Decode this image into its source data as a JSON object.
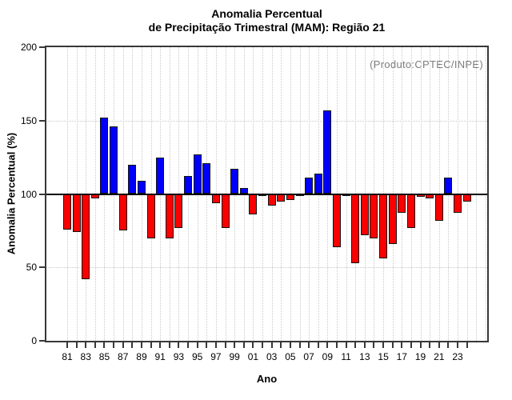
{
  "chart_data": {
    "type": "bar",
    "title": "Anomalia Percentual de Precipitação Trimestral (MAM): Região 21",
    "title_lines": [
      "Anomalia Percentual",
      "de Precipitação Trimestral (MAM): Região 21"
    ],
    "annotation": "(Produto:CPTEC/INPE)",
    "xlabel": "Ano",
    "ylabel": "Anomalia Percentual (%)",
    "ylim": [
      0,
      200
    ],
    "yticks": [
      0,
      50,
      100,
      150,
      200
    ],
    "ytick_labels": [
      "0",
      "50",
      "100",
      "150",
      "200"
    ],
    "baseline": 100,
    "grid": "dotted horizontal at 50 and 150, dotted vertical at every year",
    "legend_position": "none",
    "categories": [
      1981,
      1982,
      1983,
      1984,
      1985,
      1986,
      1987,
      1988,
      1989,
      1990,
      1991,
      1992,
      1993,
      1994,
      1995,
      1996,
      1997,
      1998,
      1999,
      2000,
      2001,
      2002,
      2003,
      2004,
      2005,
      2006,
      2007,
      2008,
      2009,
      2010,
      2011,
      2012,
      2013,
      2014,
      2015,
      2016,
      2017,
      2018,
      2019,
      2020,
      2021,
      2022,
      2023,
      2024
    ],
    "values": [
      76,
      74,
      42,
      97,
      152,
      146,
      75,
      120,
      109,
      70,
      125,
      70,
      77,
      112,
      127,
      121,
      94,
      77,
      117,
      104,
      86,
      99.5,
      92,
      95,
      96,
      99,
      111,
      114,
      157,
      64,
      99.5,
      53,
      72,
      70,
      56,
      66,
      87,
      77,
      98,
      97,
      82,
      111,
      87,
      95
    ],
    "xtick_labels": [
      "81",
      "83",
      "85",
      "87",
      "89",
      "91",
      "93",
      "95",
      "97",
      "99",
      "01",
      "03",
      "05",
      "07",
      "09",
      "11",
      "13",
      "15",
      "17",
      "19",
      "21",
      "23"
    ],
    "colors": {
      "above_baseline": "#0000FA",
      "below_baseline": "#FA0000",
      "bar_border": "#141414",
      "baseline_line": "#000000",
      "frame": "#383838",
      "gridline": "#C9C9C9",
      "annotation_text": "#7D7D7D",
      "text": "#000000"
    }
  }
}
